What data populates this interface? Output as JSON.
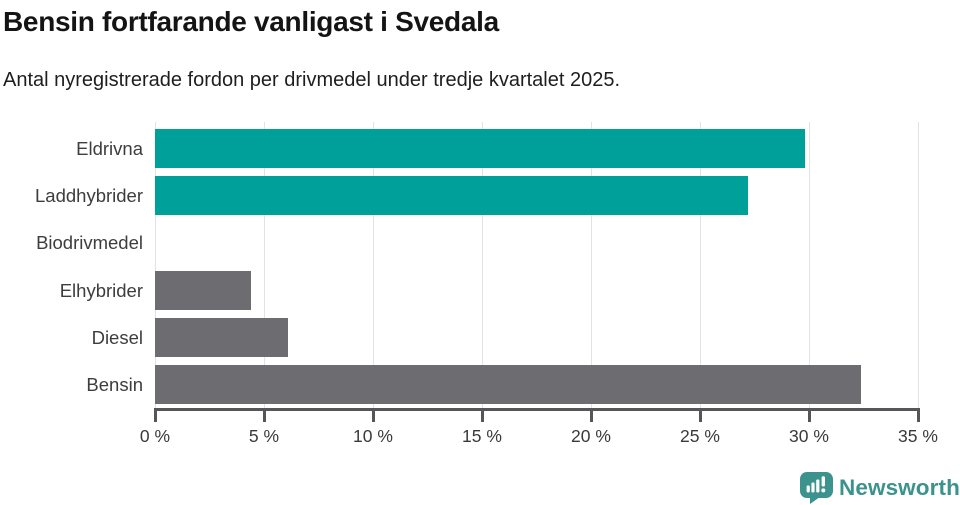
{
  "header": {
    "title": "Bensin fortfarande vanligast i Svedala",
    "subtitle": "Antal nyregistrerade fordon per drivmedel under tredje kvartalet 2025."
  },
  "chart_data": {
    "type": "bar",
    "orientation": "horizontal",
    "categories": [
      "Eldrivna",
      "Laddhybrider",
      "Biodrivmedel",
      "Elhybrider",
      "Diesel",
      "Bensin"
    ],
    "values": [
      29.8,
      27.2,
      0,
      4.4,
      6.1,
      32.4
    ],
    "unit": "%",
    "title": "Bensin fortfarande vanligast i Svedala",
    "xlabel": "",
    "ylabel": "",
    "xlim": [
      0,
      35
    ],
    "x_ticks": [
      0,
      5,
      10,
      15,
      20,
      25,
      30,
      35
    ],
    "x_tick_labels": [
      "0 %",
      "5 %",
      "10 %",
      "15 %",
      "20 %",
      "25 %",
      "30 %",
      "35 %"
    ],
    "grid": true,
    "legend": "none",
    "bar_colors": [
      "#00a09a",
      "#00a09a",
      "#6c6c71",
      "#6c6c71",
      "#6c6c71",
      "#6c6c71"
    ]
  },
  "colors": {
    "teal_bar": "#00a09a",
    "gray_bar": "#6c6c71",
    "gridline": "#e3e3e3",
    "axis": "#55565a",
    "label_text": "#3d3d3d",
    "logo_teal": "#3c938e"
  },
  "footer": {
    "brand": "Newsworthy",
    "logo_icon": "newsworthy-speech-bubble-bar-chart-icon"
  }
}
